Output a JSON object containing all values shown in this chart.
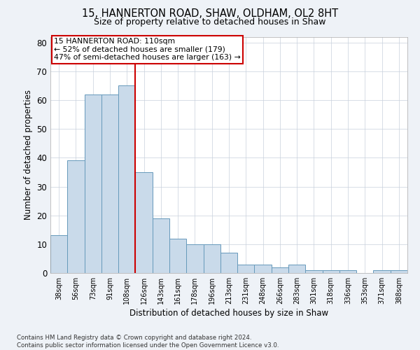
{
  "title": "15, HANNERTON ROAD, SHAW, OLDHAM, OL2 8HT",
  "subtitle": "Size of property relative to detached houses in Shaw",
  "xlabel": "Distribution of detached houses by size in Shaw",
  "ylabel": "Number of detached properties",
  "categories": [
    "38sqm",
    "56sqm",
    "73sqm",
    "91sqm",
    "108sqm",
    "126sqm",
    "143sqm",
    "161sqm",
    "178sqm",
    "196sqm",
    "213sqm",
    "231sqm",
    "248sqm",
    "266sqm",
    "283sqm",
    "301sqm",
    "318sqm",
    "336sqm",
    "353sqm",
    "371sqm",
    "388sqm"
  ],
  "values": [
    13,
    39,
    62,
    62,
    65,
    35,
    19,
    12,
    10,
    10,
    7,
    3,
    3,
    2,
    3,
    1,
    1,
    1,
    0,
    1,
    1
  ],
  "bar_color": "#c9daea",
  "bar_edge_color": "#6699bb",
  "highlight_line_index": 4,
  "highlight_line_color": "#cc0000",
  "ylim": [
    0,
    82
  ],
  "yticks": [
    0,
    10,
    20,
    30,
    40,
    50,
    60,
    70,
    80
  ],
  "annotation_text1": "15 HANNERTON ROAD: 110sqm",
  "annotation_text2": "← 52% of detached houses are smaller (179)",
  "annotation_text3": "47% of semi-detached houses are larger (163) →",
  "annotation_box_color": "#ffffff",
  "annotation_box_edge_color": "#cc0000",
  "footnote1": "Contains HM Land Registry data © Crown copyright and database right 2024.",
  "footnote2": "Contains public sector information licensed under the Open Government Licence v3.0.",
  "background_color": "#eef2f7",
  "plot_background_color": "#ffffff",
  "grid_color": "#c8d0dc"
}
